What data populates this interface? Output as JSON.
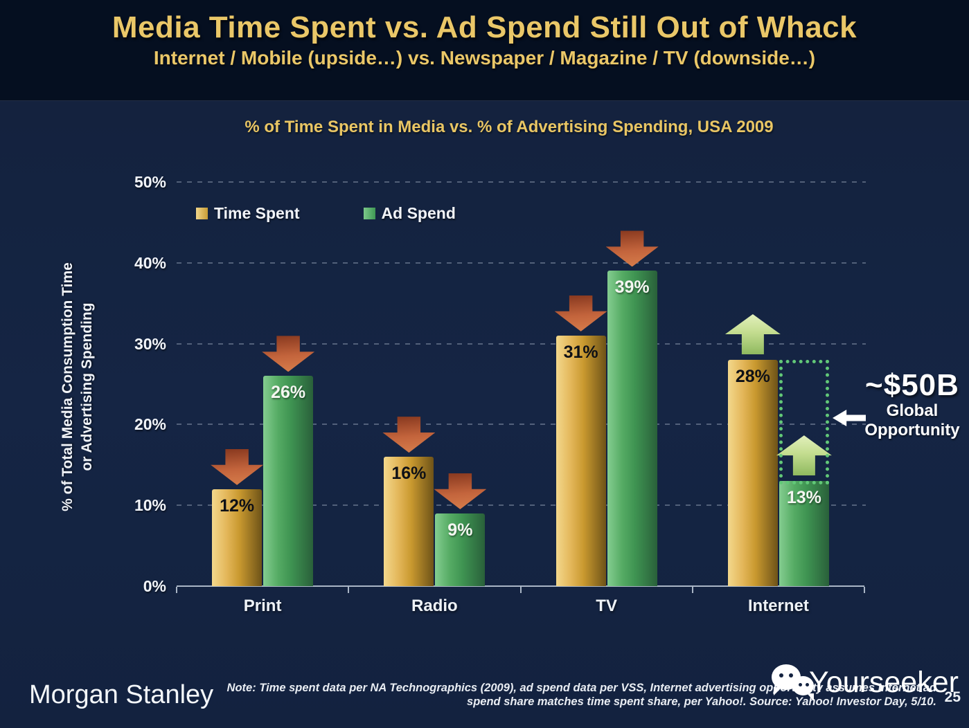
{
  "header": {
    "title": "Media Time Spent vs. Ad Spend Still Out of Whack",
    "subtitle": "Internet / Mobile (upside…) vs. Newspaper / Magazine / TV (downside…)"
  },
  "chart": {
    "title": "% of Time Spent in Media vs. % of Advertising Spending, USA 2009",
    "y_axis_title_line1": "% of Total Media Consumption Time",
    "y_axis_title_line2": "or Advertising Spending"
  },
  "legend": {
    "items": [
      {
        "label": "Time Spent"
      },
      {
        "label": "Ad Spend"
      }
    ]
  },
  "annotation": {
    "value": "~$50B",
    "line1": "Global",
    "line2": "Opportunity"
  },
  "chart_data": {
    "type": "bar",
    "title": "% of Time Spent in Media vs. % of Advertising Spending, USA 2009",
    "categories": [
      "Print",
      "Radio",
      "TV",
      "Internet"
    ],
    "series": [
      {
        "name": "Time Spent",
        "color": "#d9ab4a",
        "values": [
          12,
          16,
          31,
          28
        ],
        "trend": [
          "down",
          "down",
          "down",
          "up"
        ]
      },
      {
        "name": "Ad Spend",
        "color": "#4da65f",
        "values": [
          26,
          9,
          39,
          13
        ],
        "trend": [
          "down",
          "down",
          "down",
          "up"
        ]
      }
    ],
    "xlabel": "",
    "ylabel": "% of Total Media Consumption Time or Advertising Spending",
    "ylim": [
      0,
      50
    ],
    "ytick_step": 10,
    "yticks": [
      "0%",
      "10%",
      "20%",
      "30%",
      "40%",
      "50%"
    ],
    "value_label_format": "{value}%",
    "grid": "dashed-horizontal",
    "legend_position": "top-left-inside",
    "annotations": [
      {
        "text": "~$50B Global Opportunity",
        "points_to": "dotted gap between Internet Ad Spend (13%) and Internet Time Spent (28%)"
      }
    ]
  },
  "colors": {
    "background": "#142340",
    "header_background": "#050f20",
    "title_gold": "#e9c664",
    "bar_gold": "#d9ab4a",
    "bar_green": "#4da65f",
    "down_arrow": "#c3643c",
    "up_arrow": "#c4dd90",
    "opportunity_dotted": "#62c878",
    "axis": "#aab6c6",
    "text_white": "#f2f5fa"
  },
  "footer": {
    "logo": "Morgan Stanley",
    "note_line1": "Note: Time spent data per NA Technographics (2009), ad spend data per VSS, Internet advertising opportunity assumes Internet ad",
    "note_line2": "spend share matches time spent share, per Yahoo!. Source: Yahoo! Investor Day, 5/10.",
    "watermark": "Yourseeker",
    "page_number": "25"
  }
}
